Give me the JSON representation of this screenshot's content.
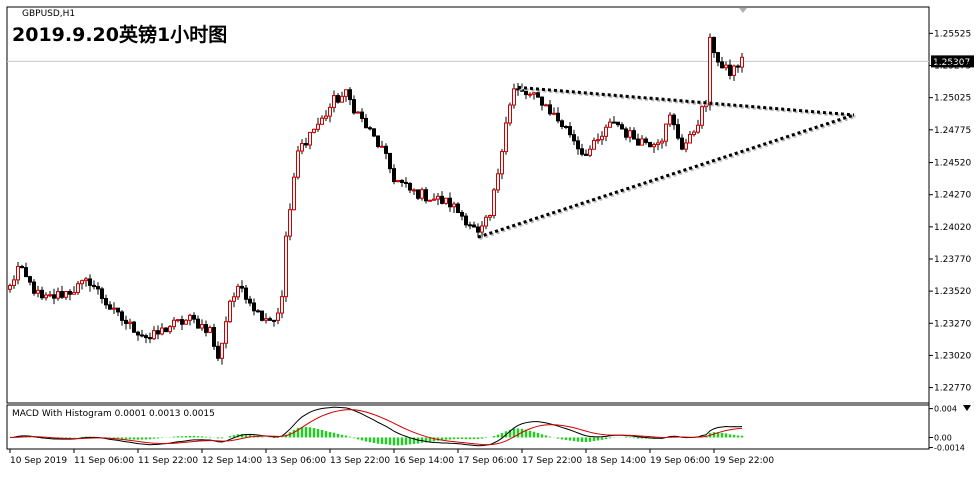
{
  "symbol": "GBPUSD,H1",
  "title": "2019.9.20英镑1小时图",
  "current_price": "1.25307",
  "macd_label": "MACD With Histogram 0.0001 0.0013 0.0015",
  "chart_data": [
    {
      "type": "candlestick",
      "title": "2019.9.20英镑1小时图",
      "symbol": "GBPUSD,H1",
      "ylim": [
        1.2265,
        1.2573
      ],
      "y_ticks": [
        "1.25525",
        "1.25275",
        "1.25025",
        "1.24775",
        "1.24520",
        "1.24270",
        "1.24020",
        "1.23770",
        "1.23520",
        "1.23270",
        "1.23020",
        "1.22770"
      ],
      "x_ticks": [
        "10 Sep 2019",
        "11 Sep 06:00",
        "11 Sep 22:00",
        "12 Sep 14:00",
        "13 Sep 06:00",
        "13 Sep 22:00",
        "16 Sep 14:00",
        "17 Sep 06:00",
        "17 Sep 22:00",
        "18 Sep 14:00",
        "19 Sep 06:00",
        "19 Sep 22:00"
      ],
      "current_price": 1.25307,
      "current_price_label": "1.25307",
      "bar_count": 184,
      "anchors": [
        [
          0,
          1.2355
        ],
        [
          2,
          1.237
        ],
        [
          8,
          1.2345
        ],
        [
          15,
          1.2352
        ],
        [
          20,
          1.236
        ],
        [
          26,
          1.2335
        ],
        [
          30,
          1.2325
        ],
        [
          35,
          1.2315
        ],
        [
          40,
          1.2325
        ],
        [
          45,
          1.233
        ],
        [
          50,
          1.2322
        ],
        [
          52,
          1.2298
        ],
        [
          55,
          1.2345
        ],
        [
          58,
          1.2355
        ],
        [
          62,
          1.2335
        ],
        [
          66,
          1.233
        ],
        [
          68,
          1.2345
        ],
        [
          69,
          1.2395
        ],
        [
          70,
          1.2415
        ],
        [
          72,
          1.246
        ],
        [
          75,
          1.2475
        ],
        [
          78,
          1.2485
        ],
        [
          81,
          1.25
        ],
        [
          84,
          1.2505
        ],
        [
          86,
          1.2495
        ],
        [
          89,
          1.248
        ],
        [
          93,
          1.2462
        ],
        [
          96,
          1.244
        ],
        [
          100,
          1.243
        ],
        [
          105,
          1.2425
        ],
        [
          110,
          1.242
        ],
        [
          115,
          1.2405
        ],
        [
          117,
          1.2395
        ],
        [
          120,
          1.241
        ],
        [
          122,
          1.2445
        ],
        [
          124,
          1.2485
        ],
        [
          126,
          1.2508
        ],
        [
          129,
          1.2505
        ],
        [
          133,
          1.25
        ],
        [
          137,
          1.2485
        ],
        [
          140,
          1.2475
        ],
        [
          143,
          1.246
        ],
        [
          145,
          1.2462
        ],
        [
          147,
          1.2468
        ],
        [
          151,
          1.2485
        ],
        [
          154,
          1.2475
        ],
        [
          157,
          1.247
        ],
        [
          160,
          1.2468
        ],
        [
          163,
          1.2472
        ],
        [
          165,
          1.2487
        ],
        [
          168,
          1.2465
        ],
        [
          170,
          1.247
        ],
        [
          173,
          1.2492
        ],
        [
          174,
          1.2498
        ],
        [
          175,
          1.2545
        ],
        [
          176,
          1.254
        ],
        [
          178,
          1.2525
        ],
        [
          180,
          1.2522
        ],
        [
          182,
          1.2528
        ],
        [
          183,
          1.2531
        ]
      ],
      "triangle_lines": [
        {
          "from": [
            127,
            1.25105
          ],
          "to": [
            211,
            1.2489
          ]
        },
        {
          "from": [
            117,
            1.2394
          ],
          "to": [
            211,
            1.2489
          ]
        }
      ]
    },
    {
      "type": "line",
      "title": "MACD With Histogram 0.0001 0.0013 0.0015",
      "ylim": [
        -0.0016,
        0.0045
      ],
      "y_ticks": [
        "0.004",
        "0.00",
        "-0.0014"
      ],
      "series_names": [
        "MACD",
        "Signal",
        "Histogram"
      ],
      "colors": {
        "macd": "#000000",
        "signal": "#d00000",
        "histogram": "#22cc22"
      }
    }
  ]
}
